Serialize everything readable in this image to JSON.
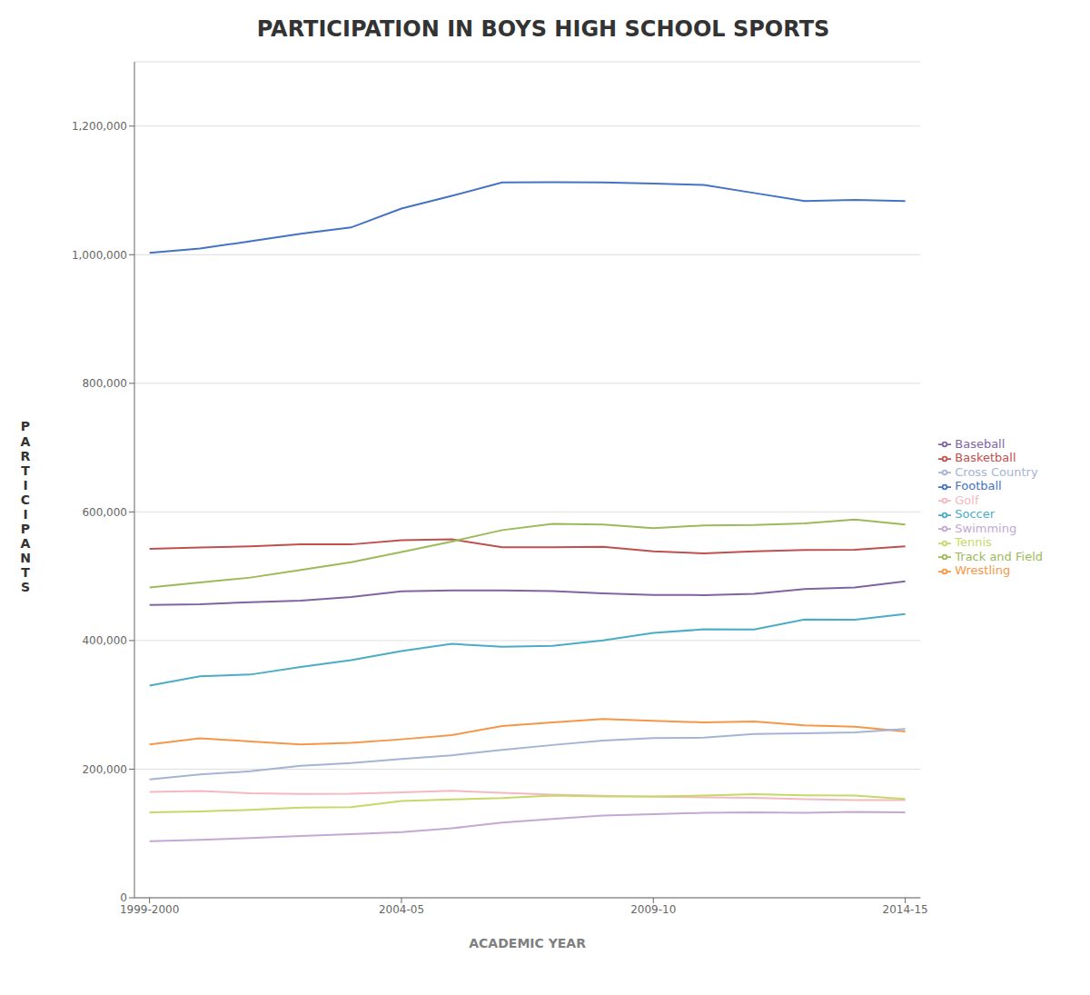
{
  "chart_data": {
    "type": "line",
    "title": "PARTICIPATION IN BOYS HIGH SCHOOL SPORTS",
    "xlabel": "ACADEMIC YEAR",
    "ylabel": "PARTICIPANTS",
    "x": [
      1999,
      2000,
      2001,
      2002,
      2003,
      2004,
      2005,
      2006,
      2007,
      2008,
      2009,
      2010,
      2011,
      2012,
      2013,
      2014
    ],
    "xlim": [
      1998.7,
      2014.3
    ],
    "xticks": [
      {
        "value": 1999,
        "label": "1999-2000"
      },
      {
        "value": 2004,
        "label": "2004-05"
      },
      {
        "value": 2009,
        "label": "2009-10"
      },
      {
        "value": 2014,
        "label": "2014-15"
      }
    ],
    "ylim": [
      0,
      1300000
    ],
    "yticks": [
      0,
      {
        "value": 200000,
        "label": "200,000"
      },
      {
        "value": 400000,
        "label": "400,000"
      },
      {
        "value": 600000,
        "label": "600,000"
      },
      {
        "value": 800000,
        "label": "800,000"
      },
      {
        "value": 1000000,
        "label": "1,000,000"
      },
      {
        "value": 1200000,
        "label": "1,200,000"
      }
    ],
    "grid": true,
    "legend": "right",
    "series": [
      {
        "name": "Football",
        "color": "#4472C4",
        "values": [
          1003025,
          1009632,
          1020845,
          1032682,
          1042334,
          1071794,
          1091470,
          1112303,
          1112827,
          1112303,
          1110527,
          1108441,
          1095993,
          1083308,
          1085272,
          1083617
        ]
      },
      {
        "name": "Basketball",
        "color": "#C0504D",
        "values": [
          542511,
          544811,
          546335,
          549499,
          549499,
          556006,
          557383,
          545145,
          545145,
          545844,
          538676,
          535590,
          538676,
          540769,
          541130,
          546428
        ]
      },
      {
        "name": "Track and Field",
        "color": "#9BBB59",
        "values": [
          482629,
          490386,
          497918,
          509793,
          521851,
          537777,
          553918,
          571753,
          581582,
          580466,
          574770,
          578970,
          579534,
          582321,
          588086,
          580321
        ]
      },
      {
        "name": "Baseball",
        "color": "#8064A2",
        "values": [
          455312,
          456390,
          459767,
          461903,
          467880,
          476651,
          478029,
          477893,
          476901,
          473354,
          471025,
          470671,
          472644,
          480016,
          482629,
          491949
        ]
      },
      {
        "name": "Soccer",
        "color": "#4BACC6",
        "values": [
          330044,
          344534,
          347085,
          358935,
          369542,
          383685,
          394959,
          390208,
          391839,
          400306,
          411757,
          417419,
          417373,
          432569,
          432396,
          441094
        ]
      },
      {
        "name": "Wrestling",
        "color": "#F79646",
        "values": [
          238352,
          248087,
          243072,
          238522,
          240890,
          246399,
          253003,
          267168,
          272890,
          278174,
          275123,
          272695,
          274196,
          268004,
          265992,
          258568
        ]
      },
      {
        "name": "Cross Country",
        "color": "#A5B4D4",
        "values": [
          183907,
          191832,
          196682,
          205328,
          209582,
          215867,
          221615,
          229832,
          237569,
          244477,
          248181,
          249032,
          254579,
          255805,
          257248,
          262610
        ]
      },
      {
        "name": "Golf",
        "color": "#F4B8C1",
        "values": [
          164689,
          165997,
          162655,
          161555,
          161693,
          163742,
          166353,
          163325,
          160428,
          158776,
          157240,
          156260,
          155584,
          153261,
          152077,
          152052
        ]
      },
      {
        "name": "Tennis",
        "color": "#C6D868",
        "values": [
          132905,
          134174,
          136777,
          140134,
          141100,
          150462,
          152891,
          155000,
          158920,
          157479,
          157427,
          159064,
          161021,
          159330,
          159030,
          153780
        ]
      },
      {
        "name": "Swimming",
        "color": "#C4A8D4",
        "values": [
          88000,
          90000,
          93000,
          96000,
          99000,
          102000,
          108000,
          117000,
          122600,
          128000,
          130000,
          132000,
          133000,
          132000,
          133500,
          133000
        ]
      }
    ]
  }
}
